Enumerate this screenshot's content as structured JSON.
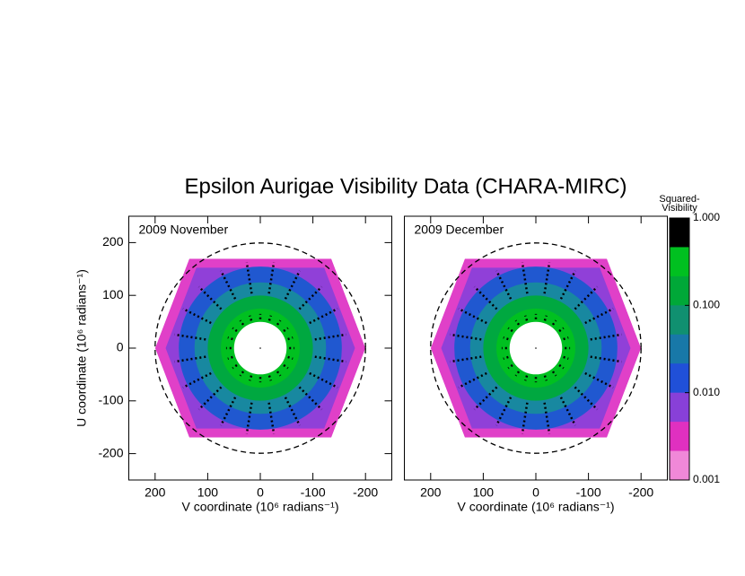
{
  "chart_data": {
    "type": "uv-map",
    "title": "Epsilon Aurigae Visibility Data (CHARA-MIRC)",
    "colorbar": {
      "label_lines": [
        "Squared-",
        "Visibility"
      ],
      "scale": "log",
      "lim": [
        0.001,
        1
      ],
      "ticks": [
        {
          "value": 1,
          "label": "1.000"
        },
        {
          "value": 0.1,
          "label": "0.100"
        },
        {
          "value": 0.01,
          "label": "0.010"
        },
        {
          "value": 0.001,
          "label": "0.001"
        }
      ],
      "colors": [
        "#000000",
        "#00c020",
        "#00a838",
        "#109070",
        "#1878a8",
        "#2050d8",
        "#8840d8",
        "#e030c0",
        "#f088d8"
      ]
    },
    "panels": [
      {
        "label": "2009 November",
        "xlabel": "V coordinate (10⁶ radians⁻¹)",
        "ylabel": "U coordinate (10⁶ radians⁻¹)",
        "xlim": [
          250,
          -250
        ],
        "ylim": [
          -250,
          250
        ],
        "xticks": [
          200,
          100,
          0,
          -100,
          -200
        ],
        "yticks": [
          200,
          100,
          0,
          -100,
          -200
        ]
      },
      {
        "label": "2009 December",
        "xlabel": "V coordinate (10⁶ radians⁻¹)",
        "xlim": [
          250,
          -250
        ],
        "ylim": [
          -250,
          250
        ],
        "xticks": [
          200,
          100,
          0,
          -100,
          -200
        ]
      }
    ]
  }
}
